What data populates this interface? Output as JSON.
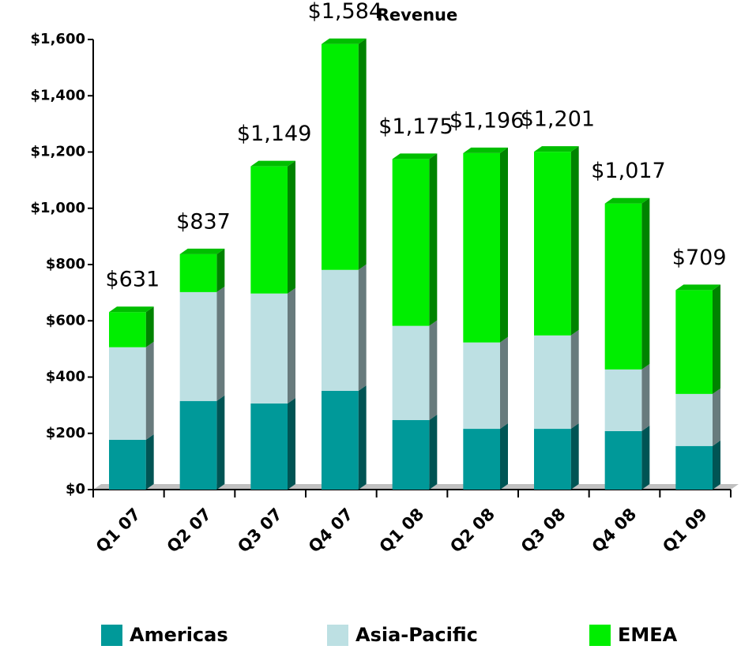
{
  "chart_data": {
    "type": "stacked-bar-3d",
    "title": "Revenue",
    "categories": [
      "Q1 07",
      "Q2 07",
      "Q3 07",
      "Q4 07",
      "Q1 08",
      "Q2 08",
      "Q3 08",
      "Q4 08",
      "Q1 09"
    ],
    "series": [
      {
        "name": "Americas",
        "color": "#009999",
        "values": [
          177,
          315,
          306,
          351,
          247,
          216,
          216,
          208,
          155
        ]
      },
      {
        "name": "Asia-Pacific",
        "color": "#bde0e3",
        "values": [
          329,
          387,
          391,
          430,
          335,
          307,
          332,
          219,
          185
        ]
      },
      {
        "name": "EMEA",
        "color": "#00ee00",
        "values": [
          125,
          135,
          452,
          803,
          593,
          673,
          653,
          590,
          369
        ]
      }
    ],
    "totals": [
      631,
      837,
      1149,
      1584,
      1175,
      1196,
      1201,
      1017,
      709
    ],
    "total_labels": [
      "$631",
      "$837",
      "$1,149",
      "$1,584",
      "$1,175",
      "$1,196",
      "$1,201",
      "$1,017",
      "$709"
    ],
    "ylim": [
      0,
      1600
    ],
    "yticks": [
      {
        "value": 0,
        "label": "$0"
      },
      {
        "value": 200,
        "label": "$200"
      },
      {
        "value": 400,
        "label": "$400"
      },
      {
        "value": 600,
        "label": "$600"
      },
      {
        "value": 800,
        "label": "$800"
      },
      {
        "value": 1000,
        "label": "$1,000"
      },
      {
        "value": 1200,
        "label": "$1,200"
      },
      {
        "value": 1400,
        "label": "$1,400"
      },
      {
        "value": 1600,
        "label": "$1,600"
      }
    ],
    "legend": "bottom"
  }
}
